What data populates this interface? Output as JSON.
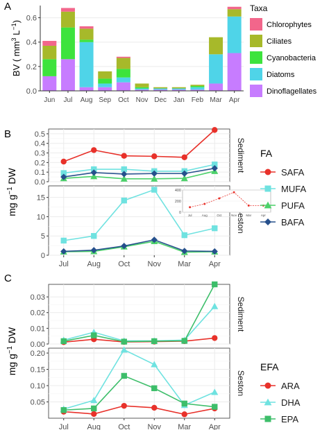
{
  "chart_data": [
    {
      "panel": "A",
      "type": "bar",
      "stacked": true,
      "ylabel_parts": [
        "BV ( mm",
        "3",
        " L",
        "−1",
        ")"
      ],
      "ylim": [
        0,
        0.7
      ],
      "yticks": [
        "0.0",
        "0.2",
        "0.4",
        "0.6"
      ],
      "categories": [
        "Jun",
        "Jul",
        "Aug",
        "Sep",
        "Oct",
        "Nov",
        "Dec",
        "Jan",
        "Feb",
        "Mar",
        "Apr"
      ],
      "legend_title": "Taxa",
      "legend_position": "right",
      "series": [
        {
          "name": "Dinoflagellates",
          "color": "#C77CFF",
          "values": [
            0.12,
            0.26,
            0.03,
            0.03,
            0.07,
            0.01,
            0.01,
            0.01,
            0.01,
            0.06,
            0.31
          ]
        },
        {
          "name": "Diatoms",
          "color": "#4FD4E8",
          "values": [
            0.0,
            0.0,
            0.37,
            0.03,
            0.04,
            0.01,
            0.01,
            0.01,
            0.02,
            0.24,
            0.3
          ]
        },
        {
          "name": "Cyanobacteria",
          "color": "#3DE33D",
          "values": [
            0.14,
            0.26,
            0.02,
            0.04,
            0.07,
            0.01,
            0.0,
            0.0,
            0.01,
            0.0,
            0.0
          ]
        },
        {
          "name": "Ciliates",
          "color": "#A7B92A",
          "values": [
            0.11,
            0.13,
            0.09,
            0.06,
            0.09,
            0.03,
            0.01,
            0.01,
            0.01,
            0.14,
            0.06
          ]
        },
        {
          "name": "Chlorophytes",
          "color": "#F2668B",
          "values": [
            0.04,
            0.03,
            0.02,
            0.0,
            0.01,
            0.0,
            0.0,
            0.0,
            0.0,
            0.0,
            0.02
          ]
        }
      ]
    },
    {
      "panel": "B",
      "type": "line",
      "ylabel_parts": [
        "mg g",
        "−1",
        " DW"
      ],
      "categories": [
        "Jul",
        "Aug",
        "Oct",
        "Nov",
        "Mar",
        "Apr"
      ],
      "legend_title": "FA",
      "legend_position": "right",
      "facets": [
        {
          "strip": "Sediment",
          "ylim": [
            0,
            0.55
          ],
          "yticks": [
            0,
            0.1,
            0.2,
            0.3,
            0.4,
            0.5
          ],
          "yticklabels": [
            "0.0",
            "0.1",
            "0.2",
            "0.3",
            "0.4",
            "0.5"
          ],
          "series": [
            {
              "name": "SAFA",
              "color": "#E8312A",
              "marker": "circle",
              "values": [
                0.21,
                0.33,
                0.27,
                0.265,
                0.255,
                0.54
              ]
            },
            {
              "name": "MUFA",
              "color": "#6FE2E0",
              "marker": "square",
              "values": [
                0.09,
                0.13,
                0.13,
                0.11,
                0.11,
                0.18
              ]
            },
            {
              "name": "PUFA",
              "color": "#4CD16A",
              "marker": "triangle",
              "values": [
                0.035,
                0.055,
                0.03,
                0.03,
                0.035,
                0.11
              ]
            },
            {
              "name": "BAFA",
              "color": "#26508C",
              "marker": "diamond",
              "values": [
                0.05,
                0.095,
                0.08,
                0.085,
                0.085,
                0.14
              ]
            }
          ]
        },
        {
          "strip": "Seston",
          "ylim": [
            0,
            18
          ],
          "yticks": [
            0,
            5,
            10,
            15
          ],
          "yticklabels": [
            "0",
            "5",
            "10",
            "15"
          ],
          "series": [
            {
              "name": "MUFA",
              "color": "#6FE2E0",
              "marker": "square",
              "values": [
                3.8,
                5.0,
                14.2,
                17.0,
                5.2,
                7.0
              ]
            },
            {
              "name": "PUFA",
              "color": "#4CD16A",
              "marker": "triangle",
              "values": [
                0.9,
                1.0,
                2.2,
                3.6,
                0.8,
                0.9
              ]
            },
            {
              "name": "BAFA",
              "color": "#26508C",
              "marker": "diamond",
              "values": [
                1.0,
                1.3,
                2.4,
                4.0,
                1.1,
                1.0
              ]
            }
          ],
          "inset": {
            "ylim": [
              0,
              400
            ],
            "yticks": [
              0,
              200,
              400
            ],
            "yticklabels": [
              "0",
              "200",
              "400"
            ],
            "categories": [
              "Jul",
              "Aug",
              "Oct",
              "Nov",
              "Mar",
              "Apr"
            ],
            "series": [
              {
                "name": "SAFA",
                "color": "#E8312A",
                "values": [
                  90,
                  150,
                  250,
                  360,
                  120,
                  120
                ]
              }
            ]
          }
        }
      ]
    },
    {
      "panel": "C",
      "type": "line",
      "ylabel_parts": [
        "mg g",
        "−1",
        " DW"
      ],
      "categories": [
        "Jul",
        "Aug",
        "Oct",
        "Nov",
        "Mar",
        "Apr"
      ],
      "legend_title": "EFA",
      "legend_position": "right",
      "facets": [
        {
          "strip": "Sediment",
          "ylim": [
            0,
            0.038
          ],
          "yticks": [
            0,
            0.01,
            0.02,
            0.03
          ],
          "yticklabels": [
            "0.00",
            "0.01",
            "0.02",
            "0.03"
          ],
          "series": [
            {
              "name": "ARA",
              "color": "#E8312A",
              "marker": "circle",
              "values": [
                0.0012,
                0.003,
                0.0013,
                0.0015,
                0.0018,
                0.0038
              ]
            },
            {
              "name": "DHA",
              "color": "#6FE2E0",
              "marker": "triangle",
              "values": [
                0.0025,
                0.0075,
                0.002,
                0.002,
                0.0025,
                0.024
              ]
            },
            {
              "name": "EPA",
              "color": "#3DBE6A",
              "marker": "square",
              "values": [
                0.0018,
                0.0055,
                0.0015,
                0.0018,
                0.002,
                0.038
              ]
            }
          ]
        },
        {
          "strip": "Seston",
          "ylim": [
            0,
            0.215
          ],
          "yticks": [
            0.05,
            0.1,
            0.15,
            0.2
          ],
          "yticklabels": [
            "0.05",
            "0.10",
            "0.15",
            "0.20"
          ],
          "series": [
            {
              "name": "ARA",
              "color": "#E8312A",
              "marker": "circle",
              "values": [
                0.02,
                0.013,
                0.038,
                0.032,
                0.012,
                0.03
              ]
            },
            {
              "name": "DHA",
              "color": "#6FE2E0",
              "marker": "triangle",
              "values": [
                0.028,
                0.055,
                0.21,
                0.165,
                0.04,
                0.08
              ]
            },
            {
              "name": "EPA",
              "color": "#3DBE6A",
              "marker": "square",
              "values": [
                0.025,
                0.03,
                0.13,
                0.092,
                0.045,
                0.035
              ]
            }
          ]
        }
      ]
    }
  ],
  "panel_labels": [
    "A",
    "B",
    "C"
  ]
}
